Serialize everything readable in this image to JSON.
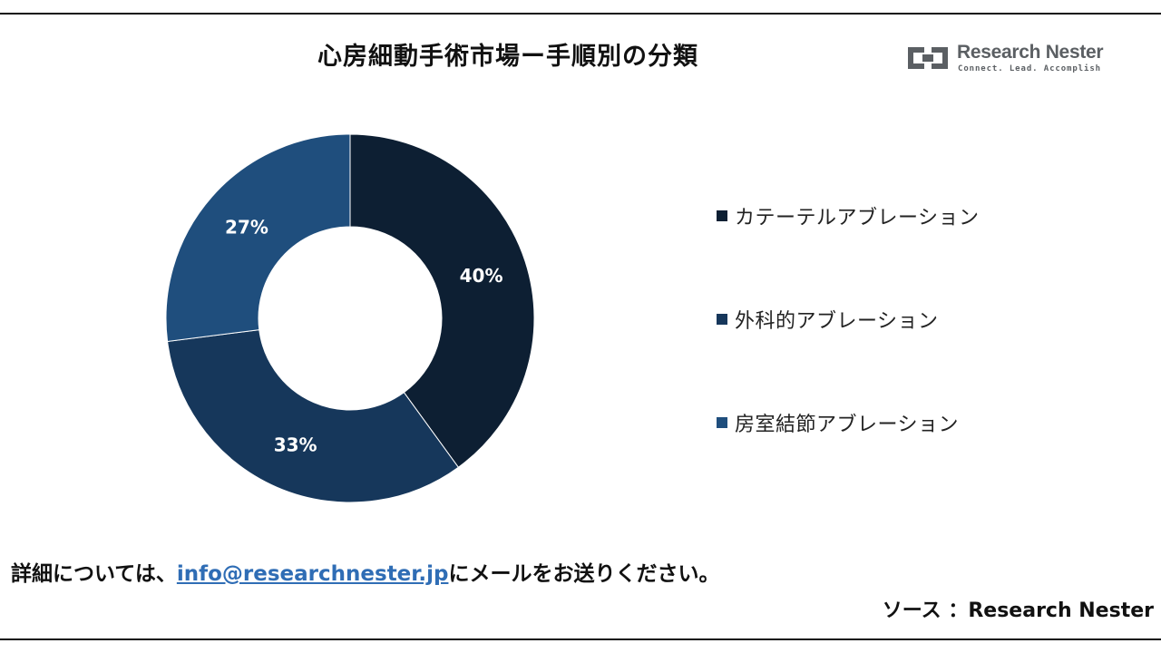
{
  "header": {
    "title": "心房細動手術市場ー手順別の分類"
  },
  "logo": {
    "name": "Research Nester",
    "tagline": "Connect. Lead. Accomplish",
    "icon": "research-nester-logo-icon",
    "color": "#5b5f63"
  },
  "chart_data": {
    "type": "pie",
    "donut": true,
    "categories": [
      "カテーテルアブレーション",
      "外科的アブレーション",
      "房室結節アブレーション"
    ],
    "values": [
      40,
      33,
      27
    ],
    "data_labels": [
      "40%",
      "33%",
      "27%"
    ],
    "colors": [
      "#0d1f33",
      "#16375b",
      "#1f4e7d"
    ],
    "legend_placement": "right"
  },
  "footer": {
    "note_prefix": "詳細については、",
    "email": "info@researchnester.jp",
    "note_suffix": "にメールをお送りください。",
    "source": "ソース ：Research Nester"
  }
}
